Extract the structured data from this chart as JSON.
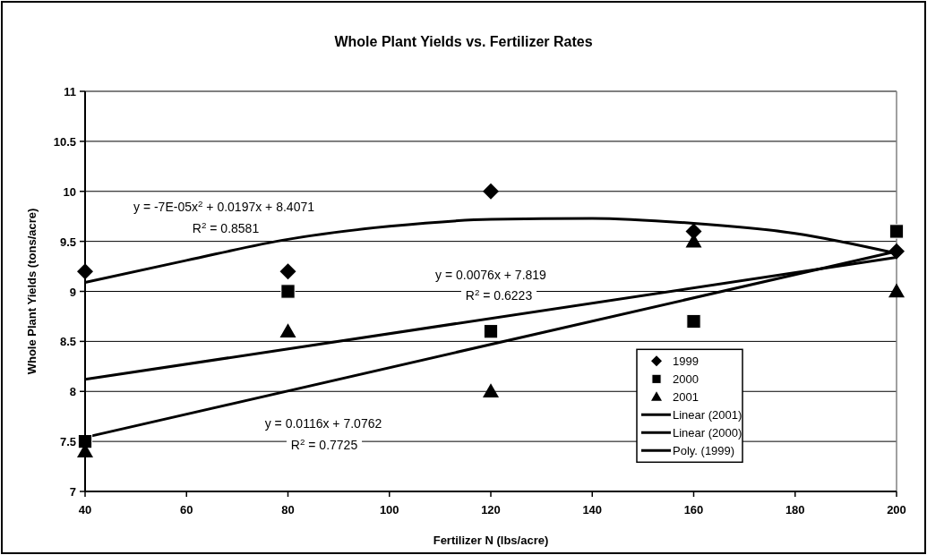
{
  "chart_data": {
    "type": "scatter",
    "title": "Whole Plant Yields vs. Fertilizer Rates",
    "xlabel": "Fertilizer N (lbs/acre)",
    "ylabel": "Whole Plant Yields (tons/acre)",
    "x": [
      40,
      80,
      120,
      160,
      200
    ],
    "series": [
      {
        "name": "1999",
        "color": "#000000",
        "marker": "diamond",
        "values": [
          9.2,
          9.2,
          10.0,
          9.6,
          9.4
        ]
      },
      {
        "name": "2000",
        "color": "#000000",
        "marker": "square",
        "values": [
          7.5,
          9.0,
          8.6,
          8.7,
          9.6
        ]
      },
      {
        "name": "2001",
        "color": "#000000",
        "marker": "triangle",
        "values": [
          7.4,
          8.6,
          8.0,
          9.5,
          9.0
        ]
      },
      {
        "name": "Linear (2001)",
        "type": "line",
        "color": "#000000",
        "marker": "none",
        "x": [
          40,
          200
        ],
        "values": [
          7.54,
          9.4
        ]
      },
      {
        "name": "Linear (2000)",
        "type": "line",
        "color": "#000000",
        "marker": "none",
        "x": [
          40,
          200
        ],
        "values": [
          8.12,
          9.34
        ]
      },
      {
        "name": "Poly. (1999)",
        "type": "line",
        "color": "#000000",
        "marker": "none",
        "x": [
          40,
          60,
          80,
          100,
          120,
          140,
          160,
          180,
          200
        ],
        "values": [
          9.09,
          9.31,
          9.52,
          9.65,
          9.72,
          9.73,
          9.68,
          9.58,
          9.38
        ]
      }
    ],
    "xlim": [
      40,
      200
    ],
    "xticks": [
      40,
      60,
      80,
      100,
      120,
      140,
      160,
      180,
      200
    ],
    "ylim": [
      7,
      11
    ],
    "yticks": [
      7,
      7.5,
      8,
      8.5,
      9,
      9.5,
      10,
      10.5,
      11
    ],
    "grid": "y",
    "legend": "right",
    "annotations": [
      "y = -7E-05x$^{2}$ + 0.0197x + 8.4071",
      "R$^{2}$ = 0.8581",
      "y = 0.0076x + 7.819",
      "R$^{2}$ = 0.6223",
      "y = 0.0116x + 7.0762",
      "R$^{2}$ = 0.7725"
    ]
  }
}
